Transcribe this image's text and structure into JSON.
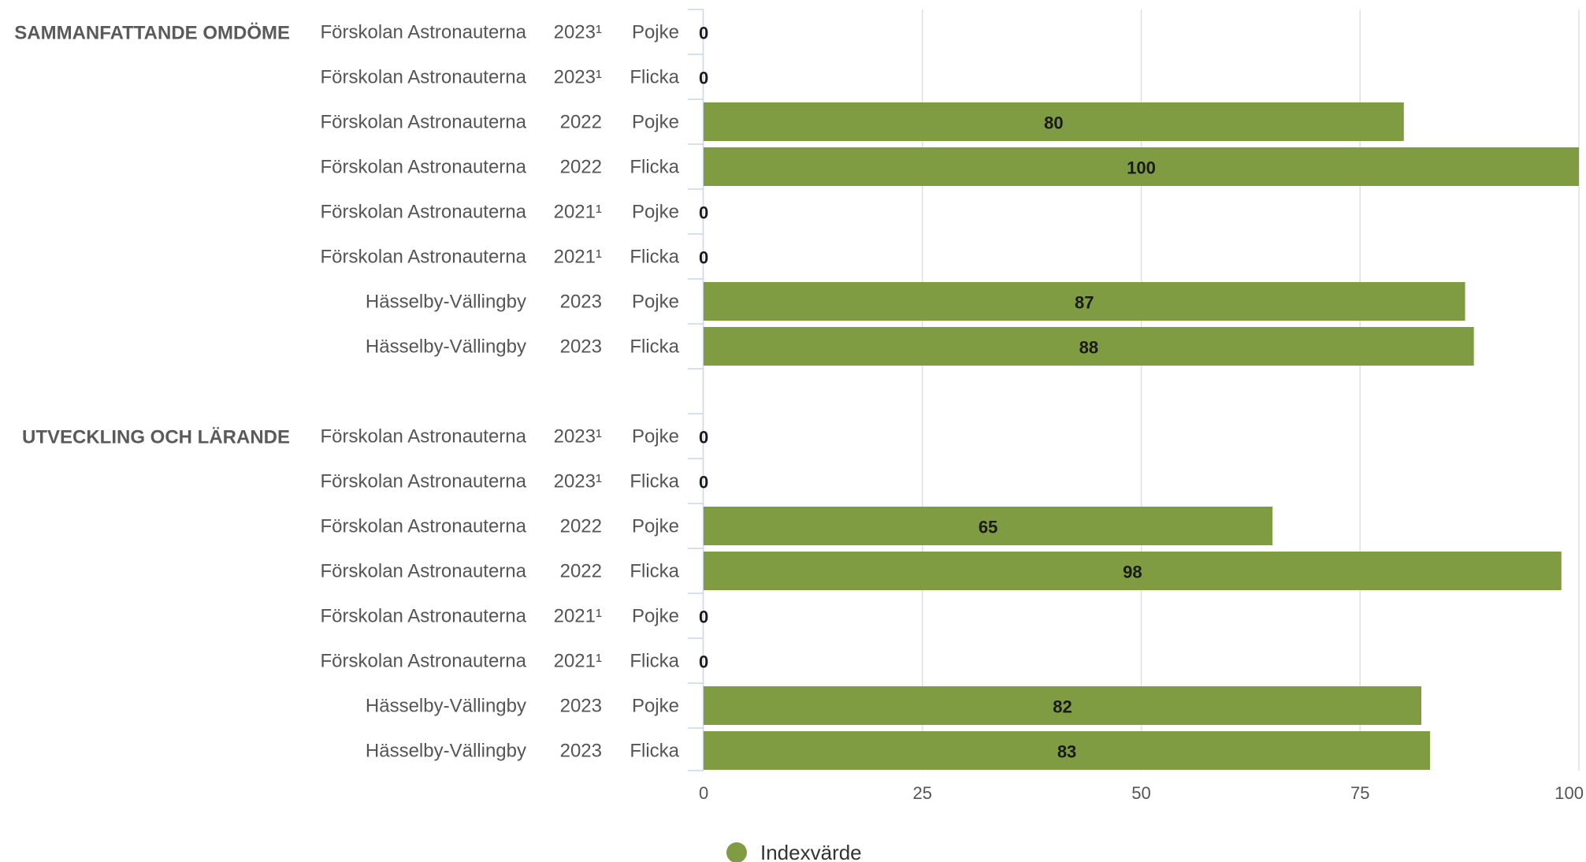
{
  "chart_data": {
    "type": "bar",
    "orientation": "horizontal",
    "xlim": [
      0,
      100
    ],
    "x_ticks": [
      "0",
      "25",
      "50",
      "75",
      "100"
    ],
    "grid": true,
    "legend_position": "bottom",
    "bar_color": "#7f9c43",
    "series": [
      {
        "name": "Indexvärde"
      }
    ],
    "groups": [
      {
        "label": "SAMMANFATTANDE OMDÖME",
        "rows": [
          {
            "unit": "Förskolan Astronauterna",
            "year": "2023¹",
            "gender": "Pojke",
            "value": 0,
            "value_label": "0"
          },
          {
            "unit": "Förskolan Astronauterna",
            "year": "2023¹",
            "gender": "Flicka",
            "value": 0,
            "value_label": "0"
          },
          {
            "unit": "Förskolan Astronauterna",
            "year": "2022",
            "gender": "Pojke",
            "value": 80,
            "value_label": "80"
          },
          {
            "unit": "Förskolan Astronauterna",
            "year": "2022",
            "gender": "Flicka",
            "value": 100,
            "value_label": "100"
          },
          {
            "unit": "Förskolan Astronauterna",
            "year": "2021¹",
            "gender": "Pojke",
            "value": 0,
            "value_label": "0"
          },
          {
            "unit": "Förskolan Astronauterna",
            "year": "2021¹",
            "gender": "Flicka",
            "value": 0,
            "value_label": "0"
          },
          {
            "unit": "Hässelby-Vällingby",
            "year": "2023",
            "gender": "Pojke",
            "value": 87,
            "value_label": "87"
          },
          {
            "unit": "Hässelby-Vällingby",
            "year": "2023",
            "gender": "Flicka",
            "value": 88,
            "value_label": "88"
          }
        ]
      },
      {
        "label": "UTVECKLING OCH LÄRANDE",
        "rows": [
          {
            "unit": "Förskolan Astronauterna",
            "year": "2023¹",
            "gender": "Pojke",
            "value": 0,
            "value_label": "0"
          },
          {
            "unit": "Förskolan Astronauterna",
            "year": "2023¹",
            "gender": "Flicka",
            "value": 0,
            "value_label": "0"
          },
          {
            "unit": "Förskolan Astronauterna",
            "year": "2022",
            "gender": "Pojke",
            "value": 65,
            "value_label": "65"
          },
          {
            "unit": "Förskolan Astronauterna",
            "year": "2022",
            "gender": "Flicka",
            "value": 98,
            "value_label": "98"
          },
          {
            "unit": "Förskolan Astronauterna",
            "year": "2021¹",
            "gender": "Pojke",
            "value": 0,
            "value_label": "0"
          },
          {
            "unit": "Förskolan Astronauterna",
            "year": "2021¹",
            "gender": "Flicka",
            "value": 0,
            "value_label": "0"
          },
          {
            "unit": "Hässelby-Vällingby",
            "year": "2023",
            "gender": "Pojke",
            "value": 82,
            "value_label": "82"
          },
          {
            "unit": "Hässelby-Vällingby",
            "year": "2023",
            "gender": "Flicka",
            "value": 83,
            "value_label": "83"
          }
        ]
      }
    ]
  }
}
